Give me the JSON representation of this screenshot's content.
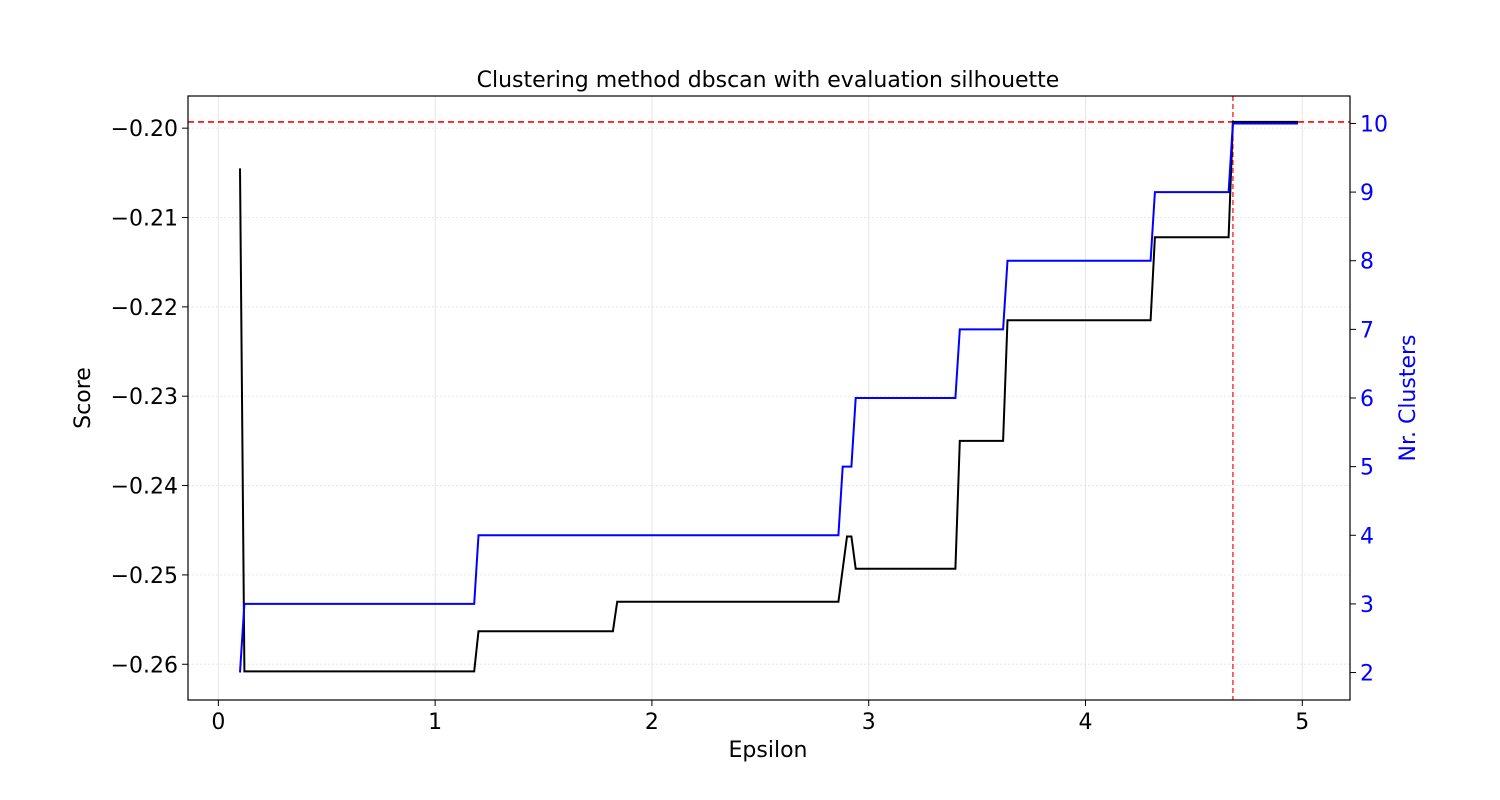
{
  "chart_data": {
    "type": "line",
    "title": "Clustering method dbscan with evaluation silhouette",
    "xlabel": "Epsilon",
    "ylabel": "Score",
    "y2label": "Nr. Clusters",
    "xlim": [
      -0.14,
      5.22
    ],
    "ylim": [
      -0.264,
      -0.1964
    ],
    "y2lim": [
      1.6,
      10.4
    ],
    "x_ticks": [
      0,
      1,
      2,
      3,
      4,
      5
    ],
    "x_tick_labels": [
      "0",
      "1",
      "2",
      "3",
      "4",
      "5"
    ],
    "y_ticks": [
      -0.2,
      -0.21,
      -0.22,
      -0.23,
      -0.24,
      -0.25,
      -0.26
    ],
    "y_tick_labels": [
      "−0.20",
      "−0.21",
      "−0.22",
      "−0.23",
      "−0.24",
      "−0.25",
      "−0.26"
    ],
    "y2_ticks": [
      2,
      3,
      4,
      5,
      6,
      7,
      8,
      9,
      10
    ],
    "y2_tick_labels": [
      "2",
      "3",
      "4",
      "5",
      "6",
      "7",
      "8",
      "9",
      "10"
    ],
    "grid": true,
    "series": [
      {
        "axis": "left",
        "color": "#000000",
        "x": [
          0.1,
          0.12,
          1.18,
          1.2,
          1.82,
          1.84,
          2.86,
          2.9,
          2.92,
          2.94,
          3.4,
          3.42,
          3.62,
          3.64,
          4.3,
          4.32,
          4.66,
          4.68,
          4.98
        ],
        "values": [
          -0.2045,
          -0.2608,
          -0.2608,
          -0.2563,
          -0.2563,
          -0.253,
          -0.253,
          -0.2457,
          -0.2457,
          -0.2493,
          -0.2493,
          -0.235,
          -0.235,
          -0.2215,
          -0.2215,
          -0.2122,
          -0.2122,
          -0.1993,
          -0.1993
        ]
      },
      {
        "axis": "right",
        "color": "#0000ff",
        "x": [
          0.1,
          0.12,
          1.18,
          1.2,
          2.86,
          2.88,
          2.92,
          2.94,
          3.4,
          3.42,
          3.62,
          3.64,
          4.3,
          4.32,
          4.66,
          4.68,
          4.98
        ],
        "values": [
          2,
          3,
          3,
          4,
          4,
          5,
          5,
          6,
          6,
          7,
          7,
          8,
          8,
          9,
          9,
          10,
          10
        ]
      }
    ],
    "reference_lines": {
      "horizontal_score": -0.1993,
      "vertical_epsilon": 4.68,
      "color": "#ff0000"
    },
    "colors": {
      "score_axis": "#000000",
      "clusters_axis": "#0000ff",
      "reference": "#ff0000",
      "grid": "#e6e6e6"
    }
  }
}
